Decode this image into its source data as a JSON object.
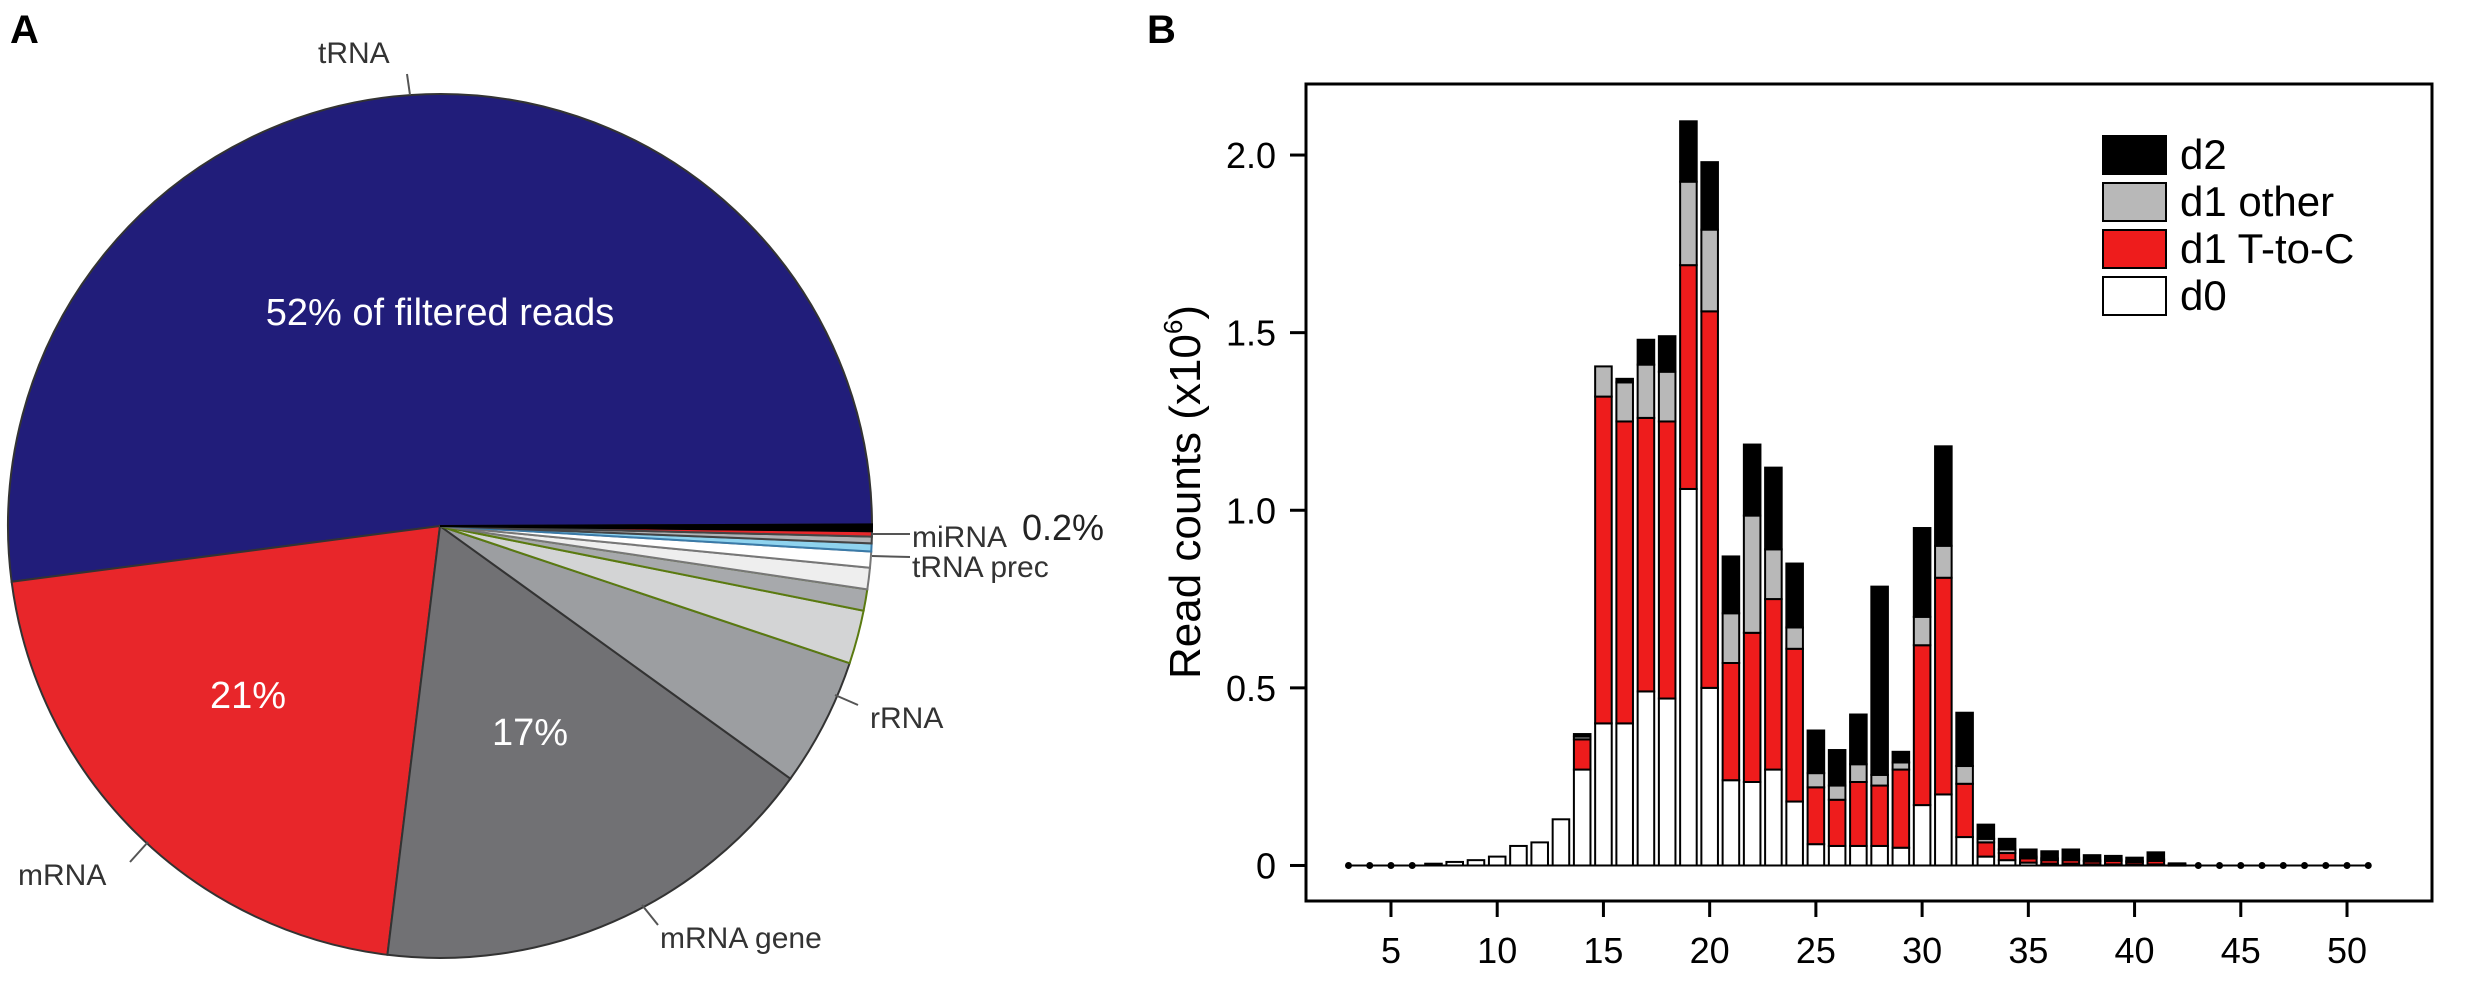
{
  "panels": {
    "a": "A",
    "b": "B"
  },
  "chart_data": [
    {
      "type": "pie",
      "title": "",
      "slices": [
        {
          "name": "tRNA",
          "value": 52.0,
          "color": "#211d7a",
          "label": "52% of filtered reads",
          "label_color": "#ffffff",
          "stroke": "#333333"
        },
        {
          "name": "mRNA",
          "value": 21.0,
          "color": "#e8262a",
          "label": "21%",
          "label_color": "#ffffff",
          "stroke": "#333333"
        },
        {
          "name": "mRNA gene",
          "value": 17.0,
          "color": "#717174",
          "label": "17%",
          "label_color": "#ffffff",
          "stroke": "#333333"
        },
        {
          "name": "rRNA",
          "value": 4.8,
          "color": "#9c9ea1",
          "label": "",
          "label_color": "#ffffff",
          "stroke": "#333333"
        },
        {
          "name": "",
          "value": 2.0,
          "color": "#d3d4d5",
          "label": "",
          "label_color": "#ffffff",
          "stroke": "#5a7a10"
        },
        {
          "name": "",
          "value": 0.8,
          "color": "#a7a9ac",
          "label": "",
          "label_color": "#ffffff",
          "stroke": "#5a7a10"
        },
        {
          "name": "",
          "value": 0.8,
          "color": "#eeeeee",
          "label": "",
          "label_color": "#ffffff",
          "stroke": "#777777"
        },
        {
          "name": "tRNA prec",
          "value": 0.6,
          "color": "#ffffff",
          "label": "",
          "label_color": "#ffffff",
          "stroke": "#777777"
        },
        {
          "name": "",
          "value": 0.3,
          "color": "#8fd3ee",
          "label": "",
          "label_color": "#ffffff",
          "stroke": "#3a7aa8"
        },
        {
          "name": "",
          "value": 0.25,
          "color": "#b1b3b6",
          "label": "",
          "label_color": "#ffffff",
          "stroke": "#444444"
        },
        {
          "name": "miRNA",
          "value": 0.2,
          "color": "#e8262a",
          "label": "",
          "label_color": "#ffffff",
          "stroke": "#444444"
        },
        {
          "name": "",
          "value": 0.25,
          "color": "#000000",
          "label": "",
          "label_color": "#ffffff",
          "stroke": "#000000"
        }
      ],
      "callouts": {
        "tRNA": "tRNA",
        "mRNA": "mRNA",
        "mRNA_gene": "mRNA gene",
        "rRNA": "rRNA",
        "tRNA_prec": "tRNA prec",
        "miRNA": "miRNA",
        "miRNA_pct": "0.2%"
      }
    },
    {
      "type": "bar",
      "stacked": true,
      "title": "",
      "xlabel": "",
      "ylabel": "Read counts (x10",
      "ylabel_exp": "6",
      "ylabel_close": ")",
      "xlim": [
        1,
        54
      ],
      "ylim": [
        -0.1,
        2.2
      ],
      "xticks": [
        5,
        10,
        15,
        20,
        25,
        30,
        35,
        40,
        45,
        50
      ],
      "xtick_labels": [
        "5",
        "10",
        "15",
        "20",
        "25",
        "30",
        "35",
        "40",
        "45",
        "50"
      ],
      "yticks": [
        0,
        0.5,
        1.0,
        1.5,
        2.0
      ],
      "ytick_labels": [
        "0",
        "0.5",
        "1.0",
        "1.5",
        "2.0"
      ],
      "grid": false,
      "legend_position": "top-right",
      "x": [
        3,
        4,
        5,
        6,
        7,
        8,
        9,
        10,
        11,
        12,
        13,
        14,
        15,
        16,
        17,
        18,
        19,
        20,
        21,
        22,
        23,
        24,
        25,
        26,
        27,
        28,
        29,
        30,
        31,
        32,
        33,
        34,
        35,
        36,
        37,
        38,
        39,
        40,
        41,
        42,
        43,
        44,
        45,
        46,
        47,
        48,
        49,
        50,
        51
      ],
      "series": [
        {
          "name": "d0",
          "color": "#ffffff",
          "values": [
            0,
            0,
            0,
            0,
            0.005,
            0.01,
            0.015,
            0.025,
            0.055,
            0.065,
            0.13,
            0.27,
            0.4,
            0.4,
            0.49,
            0.47,
            1.06,
            0.5,
            0.24,
            0.235,
            0.27,
            0.18,
            0.06,
            0.055,
            0.055,
            0.055,
            0.05,
            0.17,
            0.2,
            0.08,
            0.025,
            0.015,
            0.008,
            0.005,
            0.005,
            0.003,
            0.003,
            0.002,
            0.003,
            0.001,
            0,
            0,
            0,
            0,
            0,
            0,
            0,
            0,
            0
          ]
        },
        {
          "name": "d1 T-to-C",
          "color": "#ee1c1c",
          "values": [
            0,
            0,
            0,
            0,
            0,
            0,
            0,
            0,
            0,
            0,
            0,
            0.085,
            0.92,
            0.85,
            0.77,
            0.78,
            0.63,
            1.06,
            0.33,
            0.42,
            0.48,
            0.43,
            0.16,
            0.13,
            0.18,
            0.17,
            0.22,
            0.45,
            0.61,
            0.15,
            0.04,
            0.02,
            0.012,
            0.01,
            0.01,
            0.008,
            0.01,
            0.007,
            0.01,
            0.002,
            0,
            0,
            0,
            0,
            0,
            0,
            0,
            0,
            0
          ]
        },
        {
          "name": "d1 other",
          "color": "#b8b8b8",
          "values": [
            0,
            0,
            0,
            0,
            0,
            0,
            0,
            0,
            0,
            0,
            0,
            0.008,
            0.085,
            0.11,
            0.15,
            0.14,
            0.235,
            0.23,
            0.14,
            0.33,
            0.14,
            0.06,
            0.04,
            0.04,
            0.05,
            0.03,
            0.02,
            0.08,
            0.09,
            0.05,
            0.01,
            0.01,
            0.005,
            0.005,
            0.005,
            0.003,
            0.004,
            0.003,
            0.004,
            0.001,
            0,
            0,
            0,
            0,
            0,
            0,
            0,
            0,
            0
          ]
        },
        {
          "name": "d2",
          "color": "#000000",
          "values": [
            0,
            0,
            0,
            0,
            0,
            0,
            0,
            0,
            0,
            0,
            0,
            0.007,
            0,
            0.01,
            0.07,
            0.1,
            0.17,
            0.19,
            0.16,
            0.2,
            0.23,
            0.18,
            0.12,
            0.1,
            0.14,
            0.53,
            0.03,
            0.25,
            0.28,
            0.15,
            0.04,
            0.03,
            0.02,
            0.02,
            0.025,
            0.015,
            0.01,
            0.01,
            0.02,
            0.002,
            0,
            0,
            0,
            0,
            0,
            0,
            0,
            0,
            0
          ]
        }
      ],
      "legend_order": [
        "d2",
        "d1 other",
        "d1 T-to-C",
        "d0"
      ]
    }
  ]
}
